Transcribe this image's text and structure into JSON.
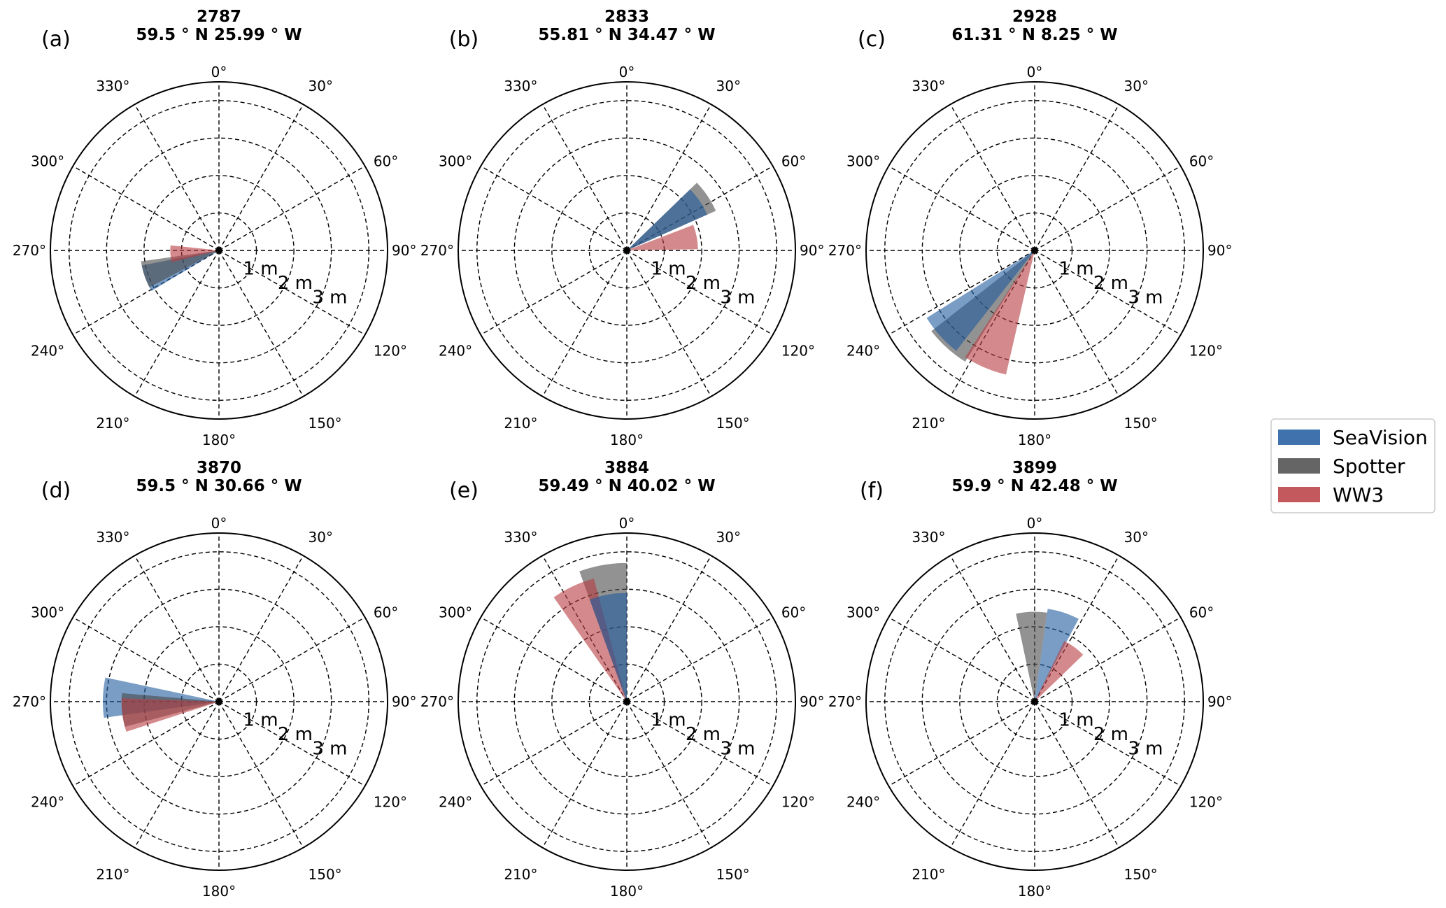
{
  "legend": [
    {
      "name": "SeaVision",
      "color": "#1f5b9f"
    },
    {
      "name": "Spotter",
      "color": "#4a4a4a"
    },
    {
      "name": "WW3",
      "color": "#b83c40"
    }
  ],
  "chart_data": [
    {
      "type": "polar-bar",
      "label": "(a)",
      "title": "2787",
      "subtitle": "59.5 ° N  25.99 ° W",
      "angle_labels": [
        "0°",
        "30°",
        "60°",
        "90°",
        "120°",
        "150°",
        "180°",
        "210°",
        "240°",
        "270°",
        "300°",
        "330°"
      ],
      "radial_labels": [
        "1 m",
        "2 m",
        "3 m"
      ],
      "rmax": 4.5,
      "series": [
        {
          "name": "SeaVision",
          "direction": 249,
          "width": 20,
          "height": 2.1
        },
        {
          "name": "Spotter",
          "direction": 252,
          "width": 20,
          "height": 2.1
        },
        {
          "name": "WW3",
          "direction": 266,
          "width": 20,
          "height": 1.3
        }
      ]
    },
    {
      "type": "polar-bar",
      "label": "(b)",
      "title": "2833",
      "subtitle": "55.81 ° N  34.47 ° W",
      "angle_labels": [
        "0°",
        "30°",
        "60°",
        "90°",
        "120°",
        "150°",
        "180°",
        "210°",
        "240°",
        "270°",
        "300°",
        "330°"
      ],
      "radial_labels": [
        "1 m",
        "2 m",
        "3 m"
      ],
      "rmax": 4.5,
      "series": [
        {
          "name": "Spotter",
          "direction": 56,
          "width": 20,
          "height": 2.6
        },
        {
          "name": "SeaVision",
          "direction": 56,
          "width": 20,
          "height": 2.35
        },
        {
          "name": "WW3",
          "direction": 79,
          "width": 20,
          "height": 1.9
        }
      ]
    },
    {
      "type": "polar-bar",
      "label": "(c)",
      "title": "2928",
      "subtitle": "61.31 ° N  8.25 ° W",
      "angle_labels": [
        "0°",
        "30°",
        "60°",
        "90°",
        "120°",
        "150°",
        "180°",
        "210°",
        "240°",
        "270°",
        "300°",
        "330°"
      ],
      "radial_labels": [
        "1 m",
        "2 m",
        "3 m"
      ],
      "rmax": 4.5,
      "series": [
        {
          "name": "Spotter",
          "direction": 222,
          "width": 20,
          "height": 3.5
        },
        {
          "name": "SeaVision",
          "direction": 228,
          "width": 20,
          "height": 3.4
        },
        {
          "name": "WW3",
          "direction": 203,
          "width": 20,
          "height": 3.4
        }
      ]
    },
    {
      "type": "polar-bar",
      "label": "(d)",
      "title": "3870",
      "subtitle": "59.5 ° N  30.66 ° W",
      "angle_labels": [
        "0°",
        "30°",
        "60°",
        "90°",
        "120°",
        "150°",
        "180°",
        "210°",
        "240°",
        "270°",
        "300°",
        "330°"
      ],
      "radial_labels": [
        "1 m",
        "2 m",
        "3 m"
      ],
      "rmax": 4.5,
      "series": [
        {
          "name": "SeaVision",
          "direction": 272,
          "width": 20,
          "height": 3.1
        },
        {
          "name": "Spotter",
          "direction": 265,
          "width": 20,
          "height": 2.6
        },
        {
          "name": "WW3",
          "direction": 262,
          "width": 20,
          "height": 2.6
        }
      ]
    },
    {
      "type": "polar-bar",
      "label": "(e)",
      "title": "3884",
      "subtitle": "59.49 ° N  40.02 ° W",
      "angle_labels": [
        "0°",
        "30°",
        "60°",
        "90°",
        "120°",
        "150°",
        "180°",
        "210°",
        "240°",
        "270°",
        "300°",
        "330°"
      ],
      "radial_labels": [
        "1 m",
        "2 m",
        "3 m"
      ],
      "rmax": 4.5,
      "series": [
        {
          "name": "Spotter",
          "direction": 350,
          "width": 20,
          "height": 3.7
        },
        {
          "name": "WW3",
          "direction": 335,
          "width": 20,
          "height": 3.4
        },
        {
          "name": "SeaVision",
          "direction": 350,
          "width": 20,
          "height": 2.9
        }
      ]
    },
    {
      "type": "polar-bar",
      "label": "(f)",
      "title": "3899",
      "subtitle": "59.9 ° N  42.48 ° W",
      "angle_labels": [
        "0°",
        "30°",
        "60°",
        "90°",
        "120°",
        "150°",
        "180°",
        "210°",
        "240°",
        "270°",
        "300°",
        "330°"
      ],
      "radial_labels": [
        "1 m",
        "2 m",
        "3 m"
      ],
      "rmax": 4.5,
      "series": [
        {
          "name": "Spotter",
          "direction": 358,
          "width": 20,
          "height": 2.4
        },
        {
          "name": "SeaVision",
          "direction": 18,
          "width": 20,
          "height": 2.5
        },
        {
          "name": "WW3",
          "direction": 36,
          "width": 20,
          "height": 1.8
        }
      ]
    }
  ]
}
